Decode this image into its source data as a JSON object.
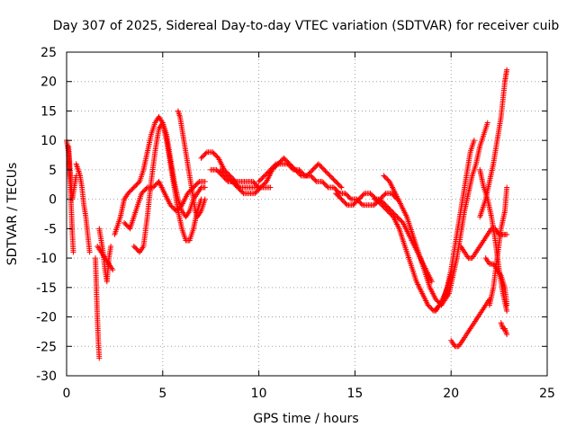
{
  "chart_data": {
    "type": "scatter",
    "title": "Day 307 of 2025, Sidereal Day-to-day VTEC variation (SDTVAR) for receiver cuib",
    "xlabel": "GPS time / hours",
    "ylabel": "SDTVAR / TECUs",
    "xlim": [
      0,
      25
    ],
    "ylim": [
      -30,
      25
    ],
    "x_ticks": [
      0,
      5,
      10,
      15,
      20,
      25
    ],
    "x_tick_labels": [
      "0",
      "5",
      "10",
      "15",
      "20",
      "25"
    ],
    "y_ticks": [
      -30,
      -25,
      -20,
      -15,
      -10,
      -5,
      0,
      5,
      10,
      15,
      20,
      25
    ],
    "y_tick_labels": [
      "-30",
      "-25",
      "-20",
      "-15",
      "-10",
      "-5",
      "0",
      "5",
      "10",
      "15",
      "20",
      "25"
    ],
    "grid": true,
    "marker": "+",
    "series_color": "#ff0000",
    "series": [
      {
        "name": "s1",
        "x": [
          0.0,
          0.1,
          0.15,
          0.2,
          0.25,
          0.3,
          0.35
        ],
        "y": [
          10,
          8,
          5,
          2,
          -2,
          -6,
          -9
        ]
      },
      {
        "name": "s2",
        "x": [
          0.1,
          0.2,
          0.3,
          0.4,
          0.5
        ],
        "y": [
          9,
          4,
          0,
          2,
          4
        ]
      },
      {
        "name": "s3",
        "x": [
          0.5,
          0.6,
          0.7,
          0.8,
          0.9,
          1.0,
          1.1,
          1.2
        ],
        "y": [
          6,
          5,
          4,
          2,
          -1,
          -3,
          -6,
          -9
        ]
      },
      {
        "name": "s4",
        "x": [
          1.5,
          1.55,
          1.6,
          1.65,
          1.7
        ],
        "y": [
          -10,
          -15,
          -20,
          -24,
          -27
        ]
      },
      {
        "name": "s5",
        "x": [
          1.7,
          1.8,
          1.9,
          2.0,
          2.1,
          2.2,
          2.3
        ],
        "y": [
          -5,
          -7,
          -9,
          -12,
          -14,
          -10,
          -8
        ]
      },
      {
        "name": "s6",
        "x": [
          1.6,
          1.8,
          2.0,
          2.2,
          2.4
        ],
        "y": [
          -8,
          -9,
          -10,
          -11,
          -12
        ]
      },
      {
        "name": "s7",
        "x": [
          2.5,
          2.8,
          3.0,
          3.2,
          3.5,
          3.8,
          4.0,
          4.2,
          4.4,
          4.6,
          4.8,
          5.0,
          5.2,
          5.4,
          5.6,
          5.8,
          6.0,
          6.2,
          6.4,
          6.6,
          6.8,
          7.0
        ],
        "y": [
          -6,
          -3,
          0,
          1,
          2,
          3,
          5,
          8,
          11,
          13,
          14,
          13,
          10,
          6,
          2,
          -2,
          -5,
          -7,
          -7,
          -5,
          -2,
          0
        ]
      },
      {
        "name": "s8",
        "x": [
          3.5,
          3.8,
          4.0,
          4.2,
          4.4,
          4.6,
          4.8,
          5.0,
          5.2,
          5.4,
          5.6,
          5.8,
          6.0,
          6.2,
          6.4,
          6.6,
          6.8,
          7.0,
          7.2
        ],
        "y": [
          -8,
          -9,
          -8,
          -3,
          3,
          8,
          12,
          13,
          11,
          7,
          3,
          0,
          -2,
          -3,
          -2,
          0,
          1,
          2,
          2
        ]
      },
      {
        "name": "s9",
        "x": [
          3.0,
          3.3,
          3.6,
          3.9,
          4.2,
          4.5,
          4.8,
          5.1,
          5.4,
          5.7,
          6.0,
          6.3,
          6.6,
          6.9,
          7.2
        ],
        "y": [
          -4,
          -5,
          -2,
          1,
          2,
          2,
          3,
          1,
          -1,
          -2,
          -1,
          1,
          2,
          3,
          3
        ]
      },
      {
        "name": "s10",
        "x": [
          5.8,
          5.9,
          6.0,
          6.1,
          6.2,
          6.3,
          6.4,
          6.5,
          6.6,
          6.7,
          6.8,
          7.0,
          7.2
        ],
        "y": [
          15,
          14,
          12,
          10,
          8,
          6,
          4,
          2,
          0,
          -2,
          -3,
          -2,
          0
        ]
      },
      {
        "name": "s11",
        "x": [
          7.0,
          7.3,
          7.6,
          7.9,
          8.2,
          8.5,
          8.8,
          9.1,
          9.4,
          9.7,
          10.0,
          10.3,
          10.6
        ],
        "y": [
          7,
          8,
          8,
          7,
          5,
          4,
          3,
          3,
          3,
          3,
          2,
          2,
          2
        ]
      },
      {
        "name": "s12",
        "x": [
          7.5,
          7.8,
          8.1,
          8.4,
          8.7,
          9.0,
          9.3,
          9.6,
          9.9
        ],
        "y": [
          5,
          5,
          4,
          3,
          3,
          2,
          2,
          2,
          2
        ]
      },
      {
        "name": "s13",
        "x": [
          8.0,
          8.3,
          8.6,
          8.9,
          9.2,
          9.5,
          9.8,
          10.1,
          10.4,
          10.7,
          11.0,
          11.3,
          11.6,
          11.9,
          12.2,
          12.5,
          12.8,
          13.1,
          13.4,
          13.7,
          14.0,
          14.3
        ],
        "y": [
          5,
          4,
          3,
          2,
          1,
          1,
          1,
          2,
          3,
          5,
          6,
          7,
          6,
          5,
          4,
          4,
          5,
          6,
          5,
          4,
          3,
          2
        ]
      },
      {
        "name": "s14",
        "x": [
          10.0,
          10.3,
          10.6,
          10.9,
          11.2,
          11.5,
          11.8,
          12.1,
          12.4,
          12.7,
          13.0,
          13.3,
          13.6,
          13.9,
          14.2,
          14.5,
          14.8,
          15.1,
          15.4,
          15.7,
          16.0,
          16.3,
          16.6,
          16.9,
          17.2
        ],
        "y": [
          3,
          4,
          5,
          6,
          6,
          6,
          5,
          5,
          4,
          4,
          3,
          3,
          2,
          2,
          1,
          1,
          0,
          0,
          -1,
          -1,
          -1,
          0,
          1,
          1,
          0
        ]
      },
      {
        "name": "s15",
        "x": [
          14.0,
          14.3,
          14.6,
          14.9,
          15.2,
          15.5,
          15.8,
          16.1,
          16.4,
          16.7,
          17.0,
          17.3,
          17.6,
          17.9,
          18.2,
          18.5,
          18.8,
          19.1,
          19.4,
          19.7,
          20.0
        ],
        "y": [
          1,
          0,
          -1,
          -1,
          0,
          1,
          1,
          0,
          -1,
          -2,
          -3,
          -5,
          -8,
          -11,
          -14,
          -16,
          -18,
          -19,
          -18,
          -16,
          -13
        ]
      },
      {
        "name": "s16",
        "x": [
          16.5,
          16.8,
          17.1,
          17.4,
          17.7,
          18.0,
          18.3,
          18.6,
          18.9,
          19.2,
          19.5
        ],
        "y": [
          4,
          3,
          1,
          -1,
          -3,
          -6,
          -9,
          -12,
          -15,
          -17,
          -18
        ]
      },
      {
        "name": "s17",
        "x": [
          16.0,
          16.3,
          16.6,
          16.9,
          17.2,
          17.5,
          17.8,
          18.1,
          18.4,
          18.7,
          19.0
        ],
        "y": [
          0,
          0,
          -1,
          -2,
          -3,
          -4,
          -6,
          -8,
          -10,
          -12,
          -14
        ]
      },
      {
        "name": "s18",
        "x": [
          19.2,
          19.4,
          19.6,
          19.8,
          20.0,
          20.2,
          20.4,
          20.6,
          20.8,
          21.0,
          21.2
        ],
        "y": [
          -19,
          -18,
          -17,
          -15,
          -12,
          -8,
          -4,
          0,
          4,
          8,
          10
        ]
      },
      {
        "name": "s19",
        "x": [
          19.5,
          19.7,
          19.9,
          20.1,
          20.3,
          20.5,
          20.7,
          20.9,
          21.1,
          21.3,
          21.5,
          21.7,
          21.9
        ],
        "y": [
          -18,
          -17,
          -16,
          -13,
          -10,
          -6,
          -2,
          1,
          4,
          6,
          9,
          11,
          13
        ]
      },
      {
        "name": "s20",
        "x": [
          20.0,
          20.2,
          20.4,
          20.6,
          20.8,
          21.0,
          21.2,
          21.4,
          21.6,
          21.8,
          22.0
        ],
        "y": [
          -24,
          -25,
          -25,
          -24,
          -23,
          -22,
          -21,
          -20,
          -19,
          -18,
          -17
        ]
      },
      {
        "name": "s21",
        "x": [
          20.5,
          20.7,
          20.9,
          21.1,
          21.3,
          21.5,
          21.7,
          21.9,
          22.1,
          22.3,
          22.5,
          22.7,
          22.9
        ],
        "y": [
          -8,
          -9,
          -10,
          -10,
          -9,
          -8,
          -7,
          -6,
          -5,
          -5,
          -6,
          -6,
          -6
        ]
      },
      {
        "name": "s22",
        "x": [
          21.5,
          21.7,
          21.9,
          22.1,
          22.3,
          22.5,
          22.7,
          22.9
        ],
        "y": [
          5,
          2,
          0,
          -3,
          -7,
          -12,
          -16,
          -19
        ]
      },
      {
        "name": "s23",
        "x": [
          21.8,
          22.0,
          22.2,
          22.4,
          22.6,
          22.8,
          22.9
        ],
        "y": [
          -10,
          -11,
          -11,
          -12,
          -13,
          -15,
          -18
        ]
      },
      {
        "name": "s24",
        "x": [
          22.0,
          22.2,
          22.4,
          22.6,
          22.8,
          22.9
        ],
        "y": [
          -18,
          -15,
          -10,
          -5,
          -2,
          2
        ]
      },
      {
        "name": "s25",
        "x": [
          21.5,
          21.8,
          22.0,
          22.2,
          22.4,
          22.6,
          22.7,
          22.8,
          22.85,
          22.9
        ],
        "y": [
          -3,
          0,
          3,
          6,
          10,
          14,
          17,
          20,
          21,
          22
        ]
      },
      {
        "name": "s26",
        "x": [
          22.6,
          22.7,
          22.8,
          22.9
        ],
        "y": [
          -21,
          -22,
          -22,
          -23
        ]
      }
    ]
  }
}
